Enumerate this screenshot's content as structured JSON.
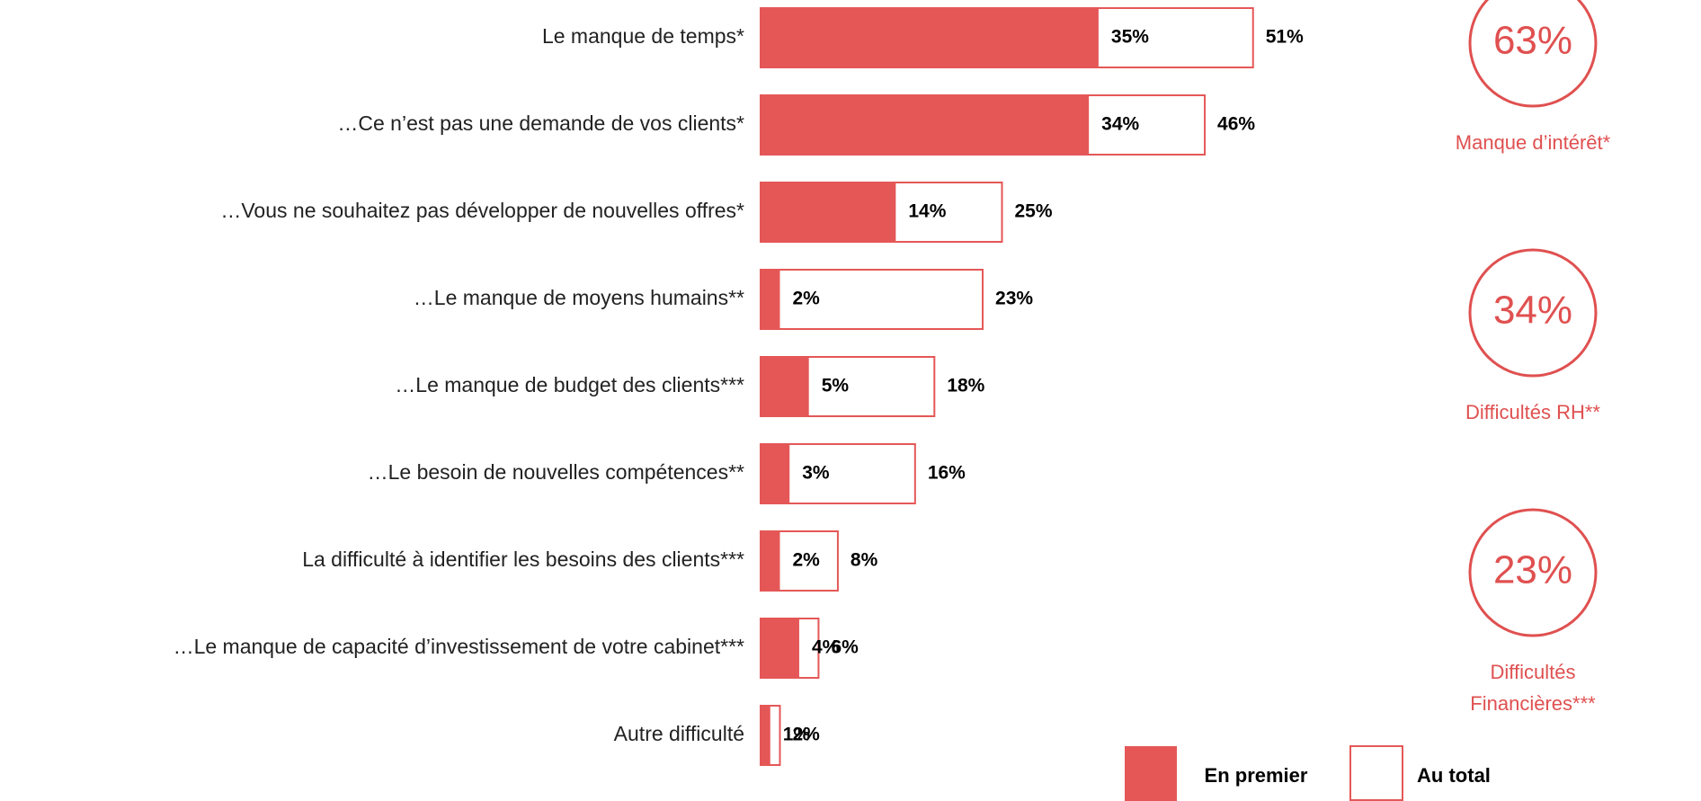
{
  "chart_data": {
    "type": "bar",
    "categories": [
      "Le manque de temps*",
      "…Ce n’est pas une demande de vos clients*",
      "…Vous ne souhaitez pas développer de nouvelles offres*",
      "…Le manque de moyens humains**",
      "…Le manque de budget des clients***",
      "…Le besoin de nouvelles compétences**",
      "La difficulté à identifier les besoins des clients***",
      "…Le manque de capacité d’investissement de votre cabinet***",
      "Autre difficulté"
    ],
    "series": [
      {
        "name": "En premier",
        "color": "#e55757",
        "values": [
          35,
          34,
          14,
          2,
          5,
          3,
          2,
          4,
          1
        ],
        "value_labels": [
          "35%",
          "34%",
          "14%",
          "2%",
          "5%",
          "3%",
          "2%",
          "4%",
          "1%"
        ]
      },
      {
        "name": "Au total",
        "color": "#e55757",
        "values": [
          51,
          46,
          25,
          23,
          18,
          16,
          8,
          6,
          2
        ],
        "value_labels": [
          "51%",
          "46%",
          "25%",
          "23%",
          "18%",
          "16%",
          "8%",
          "6%",
          "2%"
        ]
      }
    ],
    "groups": [
      {
        "value": 63,
        "value_label": "63%",
        "name_lines": [
          "Manque d’intérêt*"
        ]
      },
      {
        "value": 34,
        "value_label": "34%",
        "name_lines": [
          "Difficultés RH**"
        ]
      },
      {
        "value": 23,
        "value_label": "23%",
        "name_lines": [
          "Difficultés",
          "Financières***"
        ]
      }
    ]
  }
}
